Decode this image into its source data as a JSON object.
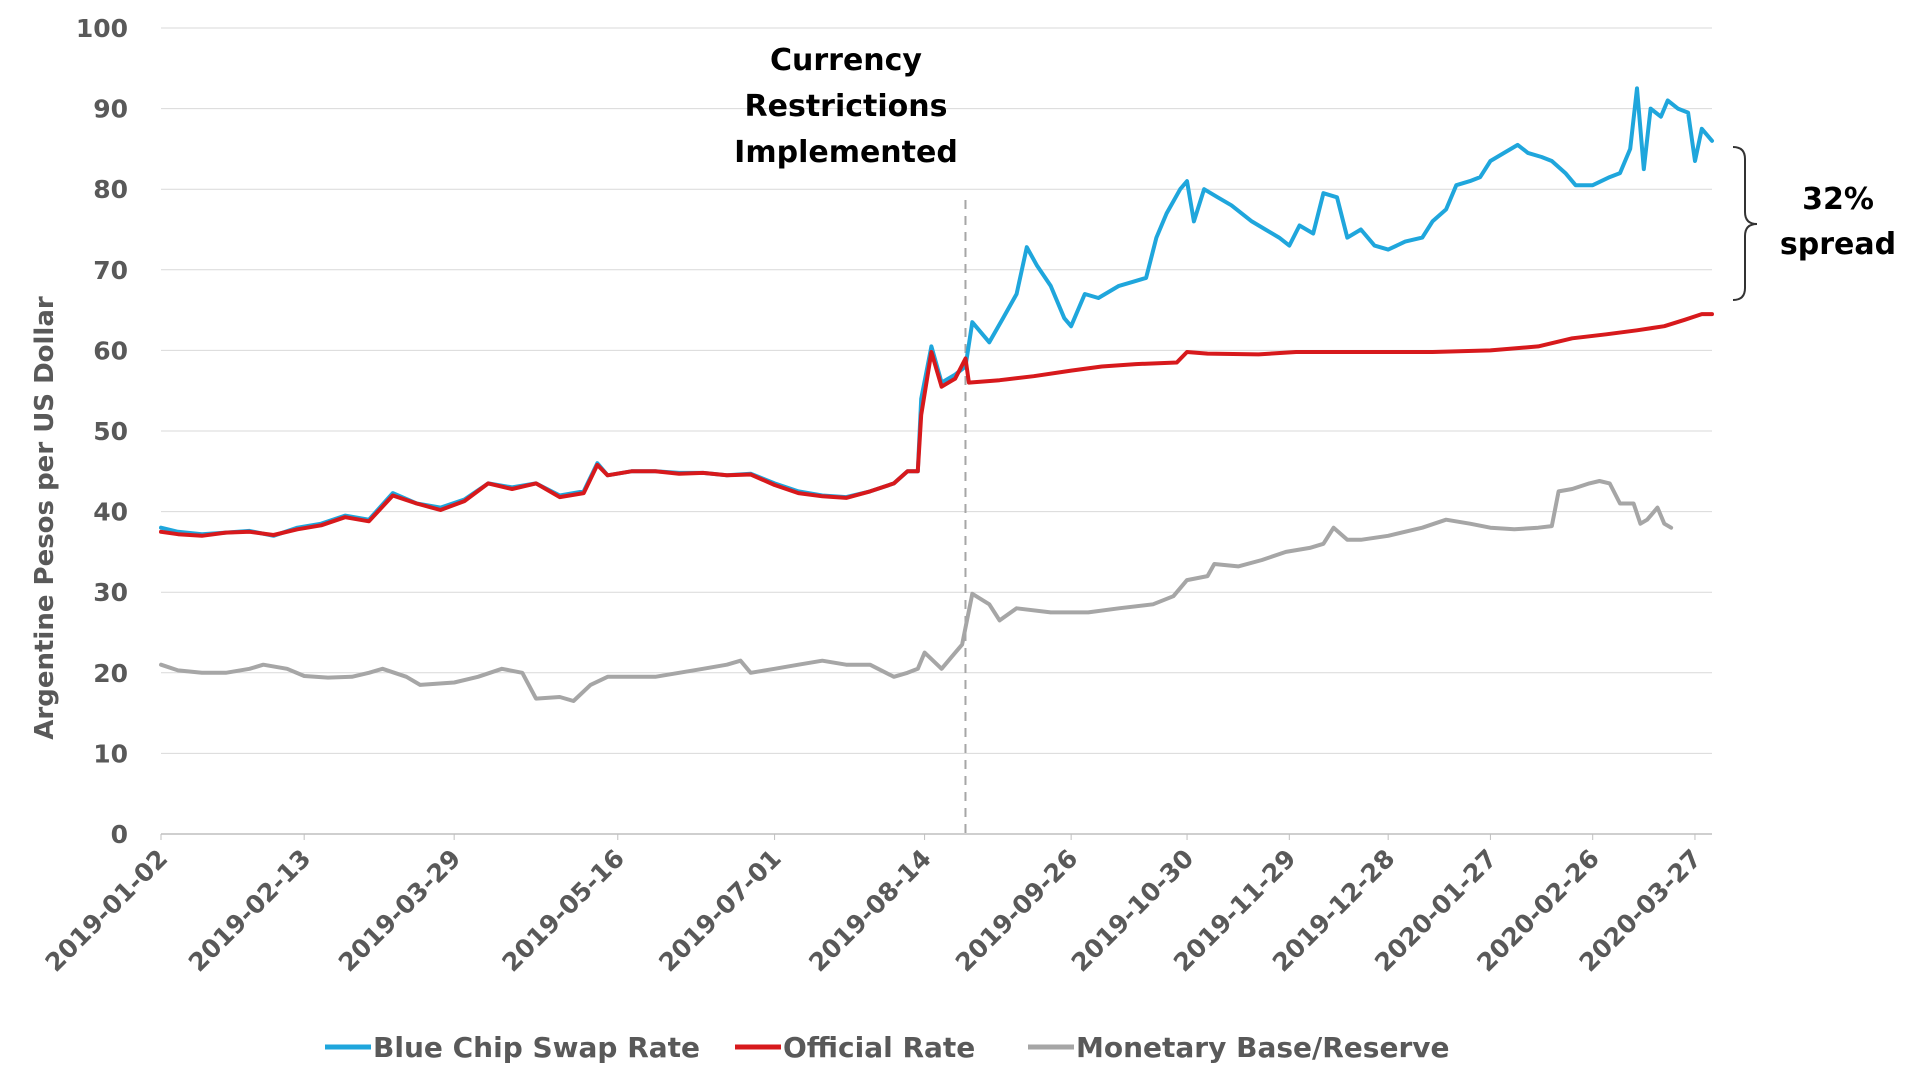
{
  "chart_data": {
    "type": "line",
    "title": "",
    "xlabel": "",
    "ylabel": "Argentine Pesos per US Dollar",
    "ylim": [
      0,
      100
    ],
    "yticks": [
      0,
      10,
      20,
      30,
      40,
      50,
      60,
      70,
      80,
      90,
      100
    ],
    "grid": "horizontal",
    "legend_position": "bottom",
    "x_tick_labels": [
      "2019-01-02",
      "2019-02-13",
      "2019-03-29",
      "2019-05-16",
      "2019-07-01",
      "2019-08-14",
      "2019-09-26",
      "2019-10-30",
      "2019-11-29",
      "2019-12-28",
      "2020-01-27",
      "2020-02-26",
      "2020-03-27"
    ],
    "event_line": {
      "date": "2019-08-26"
    },
    "annotations": {
      "event_line1": "Currency",
      "event_line2": "Restrictions",
      "event_line3": "Implemented",
      "spread_line1": "32%",
      "spread_line2": "spread"
    },
    "series": [
      {
        "name": "Blue Chip Swap Rate",
        "color": "#1fa6dc",
        "points": [
          [
            "2019-01-02",
            38.0
          ],
          [
            "2019-01-07",
            37.5
          ],
          [
            "2019-01-14",
            37.2
          ],
          [
            "2019-01-21",
            37.4
          ],
          [
            "2019-01-28",
            37.6
          ],
          [
            "2019-02-04",
            37.0
          ],
          [
            "2019-02-11",
            38.0
          ],
          [
            "2019-02-18",
            38.5
          ],
          [
            "2019-02-25",
            39.5
          ],
          [
            "2019-03-04",
            39.0
          ],
          [
            "2019-03-11",
            42.3
          ],
          [
            "2019-03-18",
            41.0
          ],
          [
            "2019-03-25",
            40.5
          ],
          [
            "2019-04-01",
            41.5
          ],
          [
            "2019-04-08",
            43.5
          ],
          [
            "2019-04-15",
            43.0
          ],
          [
            "2019-04-22",
            43.5
          ],
          [
            "2019-04-29",
            42.0
          ],
          [
            "2019-05-06",
            42.5
          ],
          [
            "2019-05-10",
            46.0
          ],
          [
            "2019-05-13",
            44.5
          ],
          [
            "2019-05-20",
            45.0
          ],
          [
            "2019-05-27",
            45.0
          ],
          [
            "2019-06-03",
            44.8
          ],
          [
            "2019-06-10",
            44.8
          ],
          [
            "2019-06-17",
            44.5
          ],
          [
            "2019-06-24",
            44.7
          ],
          [
            "2019-07-01",
            43.5
          ],
          [
            "2019-07-08",
            42.5
          ],
          [
            "2019-07-15",
            42.0
          ],
          [
            "2019-07-22",
            41.8
          ],
          [
            "2019-07-29",
            42.5
          ],
          [
            "2019-08-05",
            43.5
          ],
          [
            "2019-08-09",
            45.0
          ],
          [
            "2019-08-12",
            45.0
          ],
          [
            "2019-08-13",
            54.0
          ],
          [
            "2019-08-16",
            60.5
          ],
          [
            "2019-08-19",
            56.0
          ],
          [
            "2019-08-23",
            57.0
          ],
          [
            "2019-08-26",
            58.0
          ],
          [
            "2019-08-28",
            63.5
          ],
          [
            "2019-09-02",
            61.0
          ],
          [
            "2019-09-06",
            64.0
          ],
          [
            "2019-09-10",
            67.0
          ],
          [
            "2019-09-13",
            72.8
          ],
          [
            "2019-09-16",
            70.5
          ],
          [
            "2019-09-20",
            68.0
          ],
          [
            "2019-09-24",
            64.0
          ],
          [
            "2019-09-26",
            63.0
          ],
          [
            "2019-09-30",
            67.0
          ],
          [
            "2019-10-04",
            66.5
          ],
          [
            "2019-10-10",
            68.0
          ],
          [
            "2019-10-14",
            68.5
          ],
          [
            "2019-10-18",
            69.0
          ],
          [
            "2019-10-21",
            74.0
          ],
          [
            "2019-10-24",
            77.0
          ],
          [
            "2019-10-28",
            80.0
          ],
          [
            "2019-10-30",
            81.0
          ],
          [
            "2019-11-01",
            76.0
          ],
          [
            "2019-11-04",
            80.0
          ],
          [
            "2019-11-08",
            79.0
          ],
          [
            "2019-11-12",
            78.0
          ],
          [
            "2019-11-18",
            76.0
          ],
          [
            "2019-11-22",
            75.0
          ],
          [
            "2019-11-26",
            74.0
          ],
          [
            "2019-11-29",
            73.0
          ],
          [
            "2019-12-02",
            75.5
          ],
          [
            "2019-12-06",
            74.5
          ],
          [
            "2019-12-09",
            79.5
          ],
          [
            "2019-12-13",
            79.0
          ],
          [
            "2019-12-16",
            74.0
          ],
          [
            "2019-12-20",
            75.0
          ],
          [
            "2019-12-24",
            73.0
          ],
          [
            "2019-12-28",
            72.5
          ],
          [
            "2020-01-02",
            73.5
          ],
          [
            "2020-01-07",
            74.0
          ],
          [
            "2020-01-10",
            76.0
          ],
          [
            "2020-01-14",
            77.5
          ],
          [
            "2020-01-17",
            80.5
          ],
          [
            "2020-01-21",
            81.0
          ],
          [
            "2020-01-24",
            81.5
          ],
          [
            "2020-01-27",
            83.5
          ],
          [
            "2020-01-31",
            84.5
          ],
          [
            "2020-02-04",
            85.5
          ],
          [
            "2020-02-07",
            84.5
          ],
          [
            "2020-02-11",
            84.0
          ],
          [
            "2020-02-14",
            83.5
          ],
          [
            "2020-02-18",
            82.0
          ],
          [
            "2020-02-21",
            80.5
          ],
          [
            "2020-02-26",
            80.5
          ],
          [
            "2020-03-02",
            81.5
          ],
          [
            "2020-03-05",
            82.0
          ],
          [
            "2020-03-08",
            85.0
          ],
          [
            "2020-03-10",
            92.5
          ],
          [
            "2020-03-12",
            82.5
          ],
          [
            "2020-03-14",
            90.0
          ],
          [
            "2020-03-17",
            89.0
          ],
          [
            "2020-03-19",
            91.0
          ],
          [
            "2020-03-22",
            90.0
          ],
          [
            "2020-03-25",
            89.5
          ],
          [
            "2020-03-27",
            83.5
          ],
          [
            "2020-03-29",
            87.5
          ],
          [
            "2020-04-01",
            86.0
          ]
        ]
      },
      {
        "name": "Official Rate",
        "color": "#d7191c",
        "points": [
          [
            "2019-01-02",
            37.5
          ],
          [
            "2019-01-07",
            37.2
          ],
          [
            "2019-01-14",
            37.0
          ],
          [
            "2019-01-21",
            37.4
          ],
          [
            "2019-01-28",
            37.5
          ],
          [
            "2019-02-04",
            37.1
          ],
          [
            "2019-02-11",
            37.8
          ],
          [
            "2019-02-18",
            38.3
          ],
          [
            "2019-02-25",
            39.3
          ],
          [
            "2019-03-04",
            38.8
          ],
          [
            "2019-03-11",
            42.0
          ],
          [
            "2019-03-18",
            41.0
          ],
          [
            "2019-03-25",
            40.2
          ],
          [
            "2019-04-01",
            41.3
          ],
          [
            "2019-04-08",
            43.5
          ],
          [
            "2019-04-15",
            42.8
          ],
          [
            "2019-04-22",
            43.5
          ],
          [
            "2019-04-29",
            41.8
          ],
          [
            "2019-05-06",
            42.3
          ],
          [
            "2019-05-10",
            45.8
          ],
          [
            "2019-05-13",
            44.5
          ],
          [
            "2019-05-20",
            45.0
          ],
          [
            "2019-05-27",
            45.0
          ],
          [
            "2019-06-03",
            44.7
          ],
          [
            "2019-06-10",
            44.8
          ],
          [
            "2019-06-17",
            44.5
          ],
          [
            "2019-06-24",
            44.6
          ],
          [
            "2019-07-01",
            43.3
          ],
          [
            "2019-07-08",
            42.3
          ],
          [
            "2019-07-15",
            41.9
          ],
          [
            "2019-07-22",
            41.7
          ],
          [
            "2019-07-29",
            42.5
          ],
          [
            "2019-08-05",
            43.5
          ],
          [
            "2019-08-09",
            45.0
          ],
          [
            "2019-08-12",
            45.0
          ],
          [
            "2019-08-13",
            52.0
          ],
          [
            "2019-08-16",
            59.8
          ],
          [
            "2019-08-19",
            55.5
          ],
          [
            "2019-08-23",
            56.5
          ],
          [
            "2019-08-26",
            59.0
          ],
          [
            "2019-08-27",
            56.0
          ],
          [
            "2019-09-05",
            56.3
          ],
          [
            "2019-09-15",
            56.8
          ],
          [
            "2019-09-26",
            57.5
          ],
          [
            "2019-10-05",
            58.0
          ],
          [
            "2019-10-15",
            58.3
          ],
          [
            "2019-10-27",
            58.5
          ],
          [
            "2019-10-30",
            59.8
          ],
          [
            "2019-11-05",
            59.6
          ],
          [
            "2019-11-20",
            59.5
          ],
          [
            "2019-12-01",
            59.8
          ],
          [
            "2019-12-15",
            59.8
          ],
          [
            "2019-12-28",
            59.8
          ],
          [
            "2020-01-10",
            59.8
          ],
          [
            "2020-01-27",
            60.0
          ],
          [
            "2020-02-10",
            60.5
          ],
          [
            "2020-02-20",
            61.5
          ],
          [
            "2020-03-01",
            62.0
          ],
          [
            "2020-03-10",
            62.5
          ],
          [
            "2020-03-18",
            63.0
          ],
          [
            "2020-03-24",
            63.8
          ],
          [
            "2020-03-29",
            64.5
          ],
          [
            "2020-04-01",
            64.5
          ]
        ]
      },
      {
        "name": "Monetary Base/Reserve",
        "color": "#a6a6a6",
        "points": [
          [
            "2019-01-02",
            21.0
          ],
          [
            "2019-01-07",
            20.3
          ],
          [
            "2019-01-14",
            20.0
          ],
          [
            "2019-01-21",
            20.0
          ],
          [
            "2019-01-28",
            20.5
          ],
          [
            "2019-02-01",
            21.0
          ],
          [
            "2019-02-08",
            20.5
          ],
          [
            "2019-02-13",
            19.6
          ],
          [
            "2019-02-20",
            19.4
          ],
          [
            "2019-02-27",
            19.5
          ],
          [
            "2019-03-04",
            20.0
          ],
          [
            "2019-03-08",
            20.5
          ],
          [
            "2019-03-15",
            19.5
          ],
          [
            "2019-03-19",
            18.5
          ],
          [
            "2019-03-29",
            18.8
          ],
          [
            "2019-04-05",
            19.5
          ],
          [
            "2019-04-12",
            20.5
          ],
          [
            "2019-04-18",
            20.0
          ],
          [
            "2019-04-22",
            16.8
          ],
          [
            "2019-04-29",
            17.0
          ],
          [
            "2019-05-03",
            16.5
          ],
          [
            "2019-05-08",
            18.5
          ],
          [
            "2019-05-13",
            19.5
          ],
          [
            "2019-05-20",
            19.5
          ],
          [
            "2019-05-27",
            19.5
          ],
          [
            "2019-06-03",
            20.0
          ],
          [
            "2019-06-10",
            20.5
          ],
          [
            "2019-06-17",
            21.0
          ],
          [
            "2019-06-21",
            21.5
          ],
          [
            "2019-06-24",
            20.0
          ],
          [
            "2019-07-01",
            20.5
          ],
          [
            "2019-07-08",
            21.0
          ],
          [
            "2019-07-15",
            21.5
          ],
          [
            "2019-07-22",
            21.0
          ],
          [
            "2019-07-29",
            21.0
          ],
          [
            "2019-08-05",
            19.5
          ],
          [
            "2019-08-09",
            20.0
          ],
          [
            "2019-08-12",
            20.5
          ],
          [
            "2019-08-14",
            22.5
          ],
          [
            "2019-08-19",
            20.5
          ],
          [
            "2019-08-22",
            22.0
          ],
          [
            "2019-08-25",
            23.5
          ],
          [
            "2019-08-28",
            29.8
          ],
          [
            "2019-09-02",
            28.5
          ],
          [
            "2019-09-05",
            26.5
          ],
          [
            "2019-09-10",
            28.0
          ],
          [
            "2019-09-20",
            27.5
          ],
          [
            "2019-10-01",
            27.5
          ],
          [
            "2019-10-10",
            28.0
          ],
          [
            "2019-10-20",
            28.5
          ],
          [
            "2019-10-26",
            29.5
          ],
          [
            "2019-10-30",
            31.5
          ],
          [
            "2019-11-05",
            32.0
          ],
          [
            "2019-11-07",
            33.5
          ],
          [
            "2019-11-14",
            33.2
          ],
          [
            "2019-11-21",
            34.0
          ],
          [
            "2019-11-28",
            35.0
          ],
          [
            "2019-12-05",
            35.5
          ],
          [
            "2019-12-09",
            36.0
          ],
          [
            "2019-12-12",
            38.0
          ],
          [
            "2019-12-16",
            36.5
          ],
          [
            "2019-12-20",
            36.5
          ],
          [
            "2019-12-28",
            37.0
          ],
          [
            "2020-01-07",
            38.0
          ],
          [
            "2020-01-14",
            39.0
          ],
          [
            "2020-01-21",
            38.5
          ],
          [
            "2020-01-27",
            38.0
          ],
          [
            "2020-02-03",
            37.8
          ],
          [
            "2020-02-10",
            38.0
          ],
          [
            "2020-02-14",
            38.2
          ],
          [
            "2020-02-16",
            42.5
          ],
          [
            "2020-02-20",
            42.8
          ],
          [
            "2020-02-25",
            43.5
          ],
          [
            "2020-02-28",
            43.8
          ],
          [
            "2020-03-02",
            43.5
          ],
          [
            "2020-03-05",
            41.0
          ],
          [
            "2020-03-09",
            41.0
          ],
          [
            "2020-03-11",
            38.5
          ],
          [
            "2020-03-13",
            39.0
          ],
          [
            "2020-03-16",
            40.5
          ],
          [
            "2020-03-18",
            38.5
          ],
          [
            "2020-03-20",
            38.0
          ]
        ]
      }
    ]
  }
}
